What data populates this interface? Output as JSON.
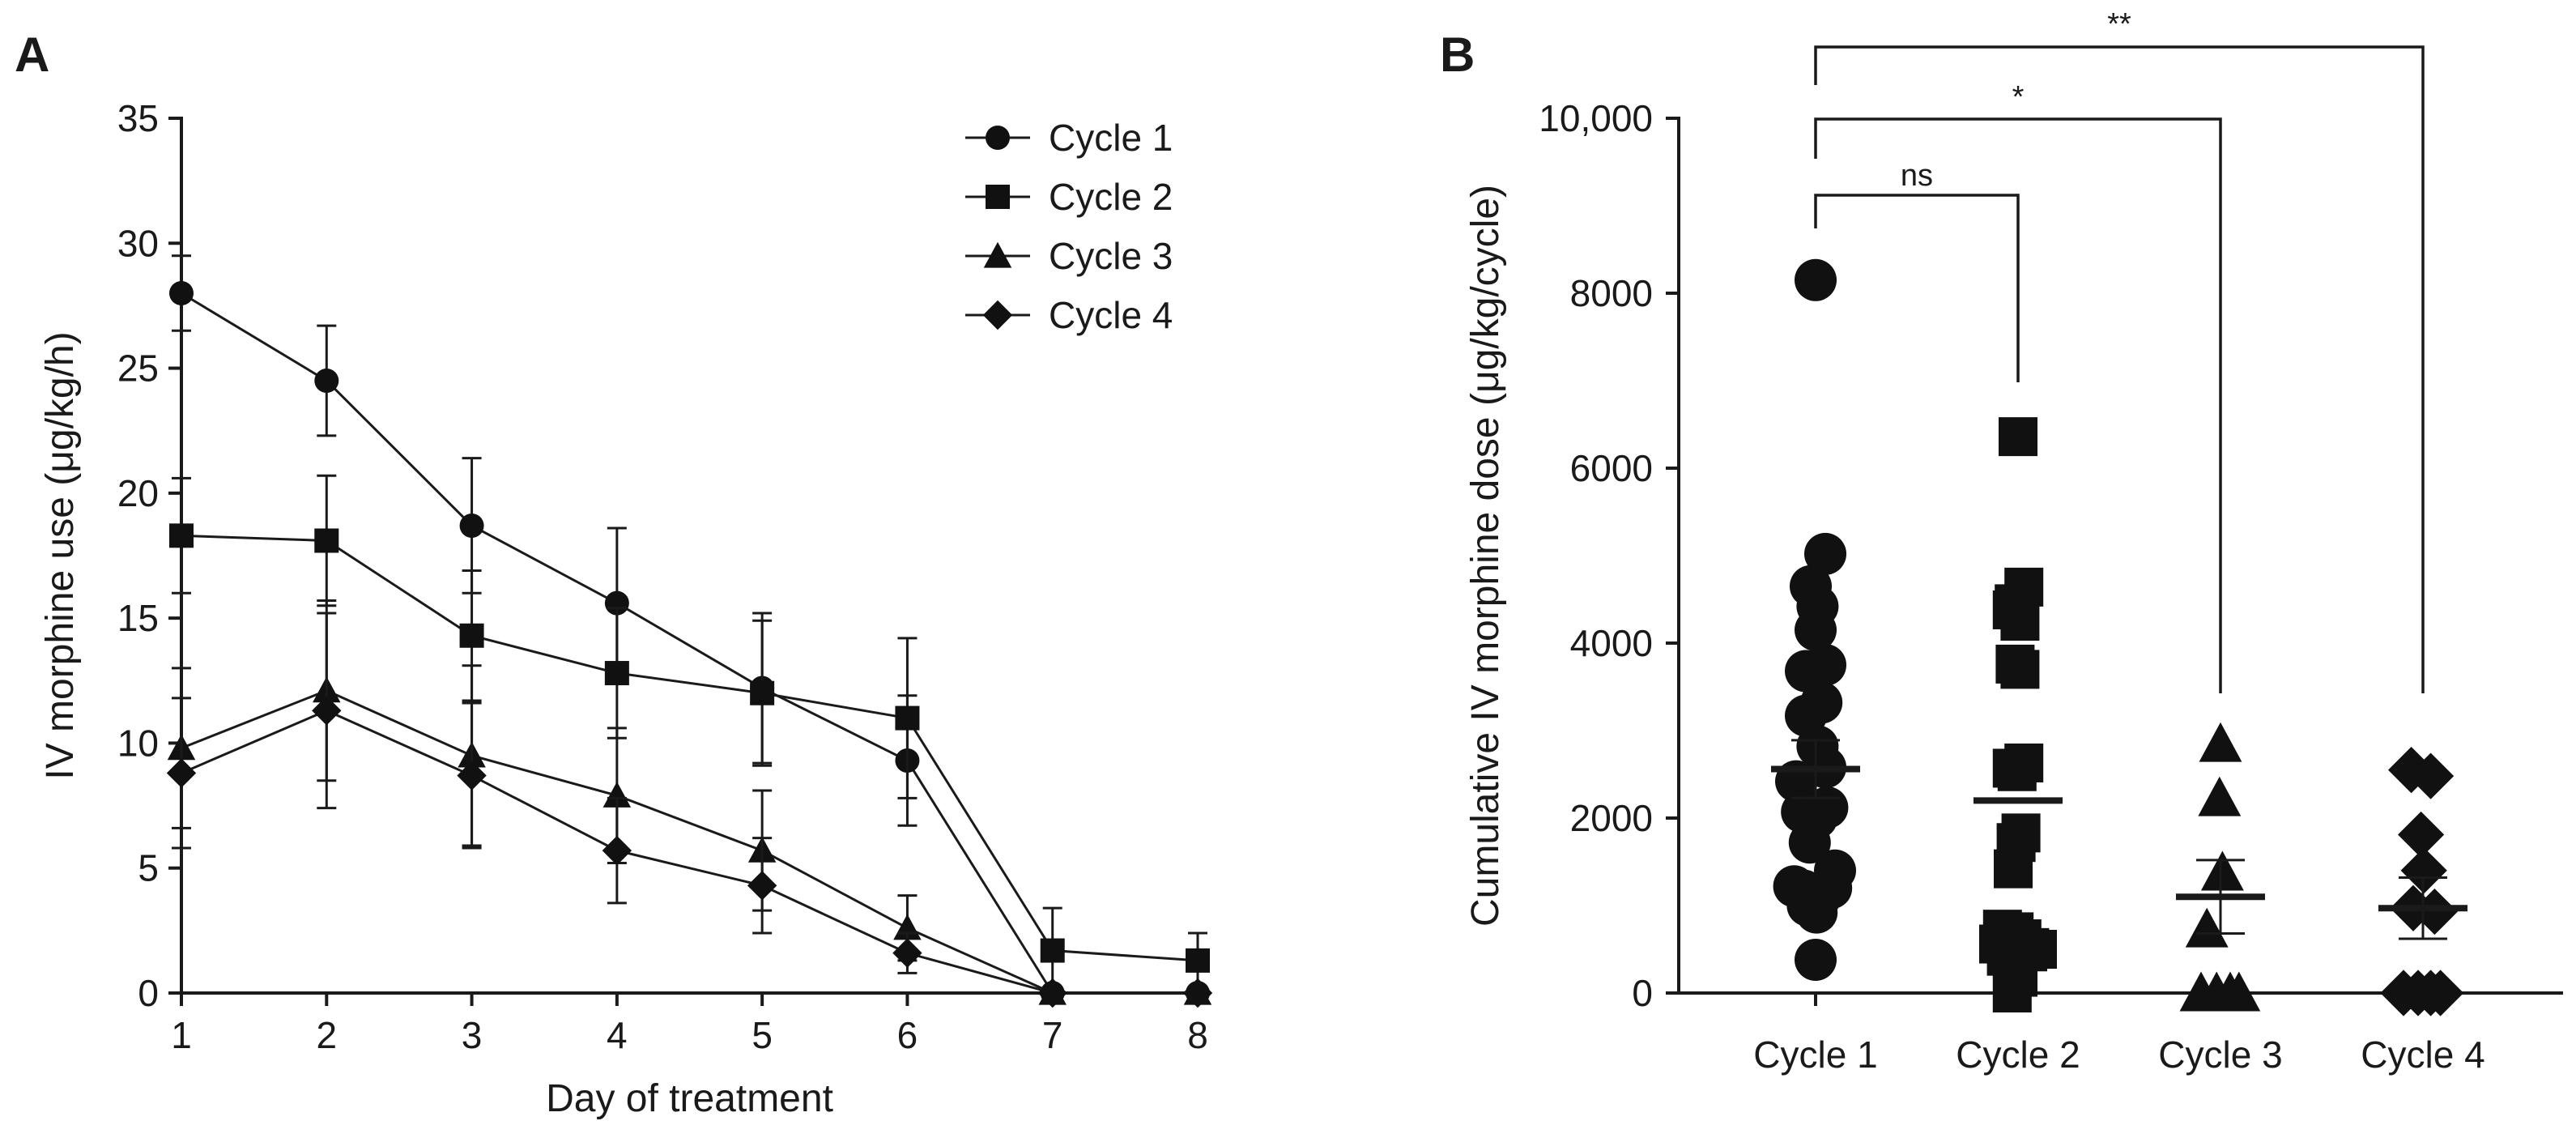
{
  "panels": {
    "a": {
      "letter": "A"
    },
    "b": {
      "letter": "B"
    }
  },
  "chart_data": [
    {
      "type": "line",
      "panel": "A",
      "xlabel": "Day of treatment",
      "ylabel": "IV morphine use (μg/kg/h)",
      "xlim": [
        1,
        8
      ],
      "ylim": [
        0,
        35
      ],
      "x": [
        1,
        2,
        3,
        4,
        5,
        6,
        7,
        8
      ],
      "x_tick_labels": [
        "1",
        "2",
        "3",
        "4",
        "5",
        "6",
        "7",
        "8"
      ],
      "y_tick_labels": [
        "0",
        "5",
        "10",
        "15",
        "20",
        "25",
        "30",
        "35"
      ],
      "grid": false,
      "legend_position": "top-right",
      "series": [
        {
          "name": "Cycle 1",
          "marker": "circle",
          "values": [
            28.0,
            24.5,
            18.7,
            15.6,
            12.2,
            9.3,
            0.0,
            0.0
          ],
          "err_up": [
            1.5,
            2.2,
            2.7,
            3.0,
            3.0,
            2.6,
            0.0,
            0.0
          ],
          "err_down": [
            1.5,
            2.2,
            2.7,
            3.0,
            3.0,
            2.6,
            0.0,
            0.0
          ]
        },
        {
          "name": "Cycle 2",
          "marker": "square",
          "values": [
            18.3,
            18.1,
            14.3,
            12.8,
            12.0,
            11.0,
            1.7,
            1.3
          ],
          "err_up": [
            2.3,
            2.6,
            2.6,
            2.6,
            2.9,
            3.2,
            1.7,
            1.1
          ],
          "err_down": [
            2.3,
            2.6,
            2.6,
            2.6,
            2.9,
            3.2,
            1.7,
            1.3
          ]
        },
        {
          "name": "Cycle 3",
          "marker": "triangle",
          "values": [
            9.8,
            12.1,
            9.5,
            7.9,
            5.7,
            2.6,
            0.0,
            0.0
          ],
          "err_up": [
            3.2,
            3.6,
            3.6,
            2.7,
            2.4,
            1.3,
            0.0,
            0.0
          ],
          "err_down": [
            3.2,
            3.6,
            3.6,
            2.7,
            2.4,
            1.3,
            0.0,
            0.0
          ]
        },
        {
          "name": "Cycle 4",
          "marker": "diamond",
          "values": [
            8.8,
            11.3,
            8.7,
            5.7,
            4.3,
            1.6,
            0.0,
            0.0
          ],
          "err_up": [
            3.0,
            3.9,
            2.9,
            2.1,
            1.9,
            0.8,
            0.0,
            0.0
          ],
          "err_down": [
            3.0,
            3.9,
            2.9,
            2.1,
            1.9,
            0.8,
            0.0,
            0.0
          ]
        }
      ]
    },
    {
      "type": "scatter",
      "panel": "B",
      "ylabel": "Cumulative IV morphine dose (μg/kg/cycle)",
      "ylim": [
        0,
        10000
      ],
      "categories": [
        "Cycle 1",
        "Cycle 2",
        "Cycle 3",
        "Cycle 4"
      ],
      "y_tick_labels": [
        "0",
        "2000",
        "4000",
        "6000",
        "8000",
        "10,000"
      ],
      "grid": false,
      "groups": [
        {
          "name": "Cycle 1",
          "marker": "circle",
          "mean": 2560,
          "sem": 330,
          "points": [
            {
              "dx": 0,
              "y": 8150
            },
            {
              "dx": 0.1,
              "y": 5020
            },
            {
              "dx": -0.05,
              "y": 4650
            },
            {
              "dx": 0.02,
              "y": 4420
            },
            {
              "dx": 0,
              "y": 4150
            },
            {
              "dx": -0.1,
              "y": 3680
            },
            {
              "dx": 0.1,
              "y": 3750
            },
            {
              "dx": 0.06,
              "y": 3320
            },
            {
              "dx": -0.1,
              "y": 3170
            },
            {
              "dx": 0.02,
              "y": 2820
            },
            {
              "dx": 0.1,
              "y": 2580
            },
            {
              "dx": -0.2,
              "y": 2420
            },
            {
              "dx": 0.12,
              "y": 2120
            },
            {
              "dx": -0.14,
              "y": 2070
            },
            {
              "dx": 0.01,
              "y": 2000
            },
            {
              "dx": -0.06,
              "y": 1720
            },
            {
              "dx": 0.2,
              "y": 1400
            },
            {
              "dx": -0.22,
              "y": 1220
            },
            {
              "dx": -0.12,
              "y": 1170
            },
            {
              "dx": 0.16,
              "y": 1200
            },
            {
              "dx": 0.04,
              "y": 1080
            },
            {
              "dx": -0.08,
              "y": 1000
            },
            {
              "dx": 0.01,
              "y": 920
            },
            {
              "dx": 0,
              "y": 380
            }
          ]
        },
        {
          "name": "Cycle 2",
          "marker": "square",
          "mean": 2200,
          "sem": null,
          "points": [
            {
              "dx": 0,
              "y": 6360
            },
            {
              "dx": 0.06,
              "y": 4640
            },
            {
              "dx": -0.04,
              "y": 4450
            },
            {
              "dx": 0.02,
              "y": 4250
            },
            {
              "dx": -0.06,
              "y": 4380
            },
            {
              "dx": -0.03,
              "y": 3760
            },
            {
              "dx": 0.02,
              "y": 3700
            },
            {
              "dx": 0.06,
              "y": 2630
            },
            {
              "dx": -0.06,
              "y": 2570
            },
            {
              "dx": -0.01,
              "y": 2530
            },
            {
              "dx": 0.03,
              "y": 1830
            },
            {
              "dx": -0.02,
              "y": 1720
            },
            {
              "dx": -0.05,
              "y": 1420
            },
            {
              "dx": -0.16,
              "y": 730
            },
            {
              "dx": -0.2,
              "y": 560
            },
            {
              "dx": -0.04,
              "y": 700
            },
            {
              "dx": 0.04,
              "y": 620
            },
            {
              "dx": 0.12,
              "y": 520
            },
            {
              "dx": 0.2,
              "y": 500
            },
            {
              "dx": -0.12,
              "y": 420
            },
            {
              "dx": 0.1,
              "y": 470
            },
            {
              "dx": 0,
              "y": 180
            },
            {
              "dx": -0.06,
              "y": 0
            }
          ]
        },
        {
          "name": "Cycle 3",
          "marker": "triangle",
          "mean": 1100,
          "sem": 420,
          "points": [
            {
              "dx": 0,
              "y": 2850
            },
            {
              "dx": -0.01,
              "y": 2230
            },
            {
              "dx": 0.02,
              "y": 1380
            },
            {
              "dx": -0.14,
              "y": 730
            },
            {
              "dx": -0.2,
              "y": 0
            },
            {
              "dx": 0.1,
              "y": 0
            },
            {
              "dx": -0.04,
              "y": 0
            },
            {
              "dx": 0.19,
              "y": 0
            }
          ]
        },
        {
          "name": "Cycle 4",
          "marker": "diamond",
          "mean": 970,
          "sem": 350,
          "points": [
            {
              "dx": -0.12,
              "y": 2550
            },
            {
              "dx": 0.08,
              "y": 2480
            },
            {
              "dx": -0.02,
              "y": 1810
            },
            {
              "dx": 0.01,
              "y": 1400
            },
            {
              "dx": -0.1,
              "y": 970
            },
            {
              "dx": 0.12,
              "y": 930
            },
            {
              "dx": -0.2,
              "y": 0
            },
            {
              "dx": -0.05,
              "y": 0
            },
            {
              "dx": 0.08,
              "y": 0
            },
            {
              "dx": 0.18,
              "y": 0
            }
          ]
        }
      ],
      "significance": [
        {
          "from": "Cycle 1",
          "to": "Cycle 2",
          "label": "ns"
        },
        {
          "from": "Cycle 1",
          "to": "Cycle 3",
          "label": "*"
        },
        {
          "from": "Cycle 1",
          "to": "Cycle 4",
          "label": "**"
        }
      ]
    }
  ]
}
